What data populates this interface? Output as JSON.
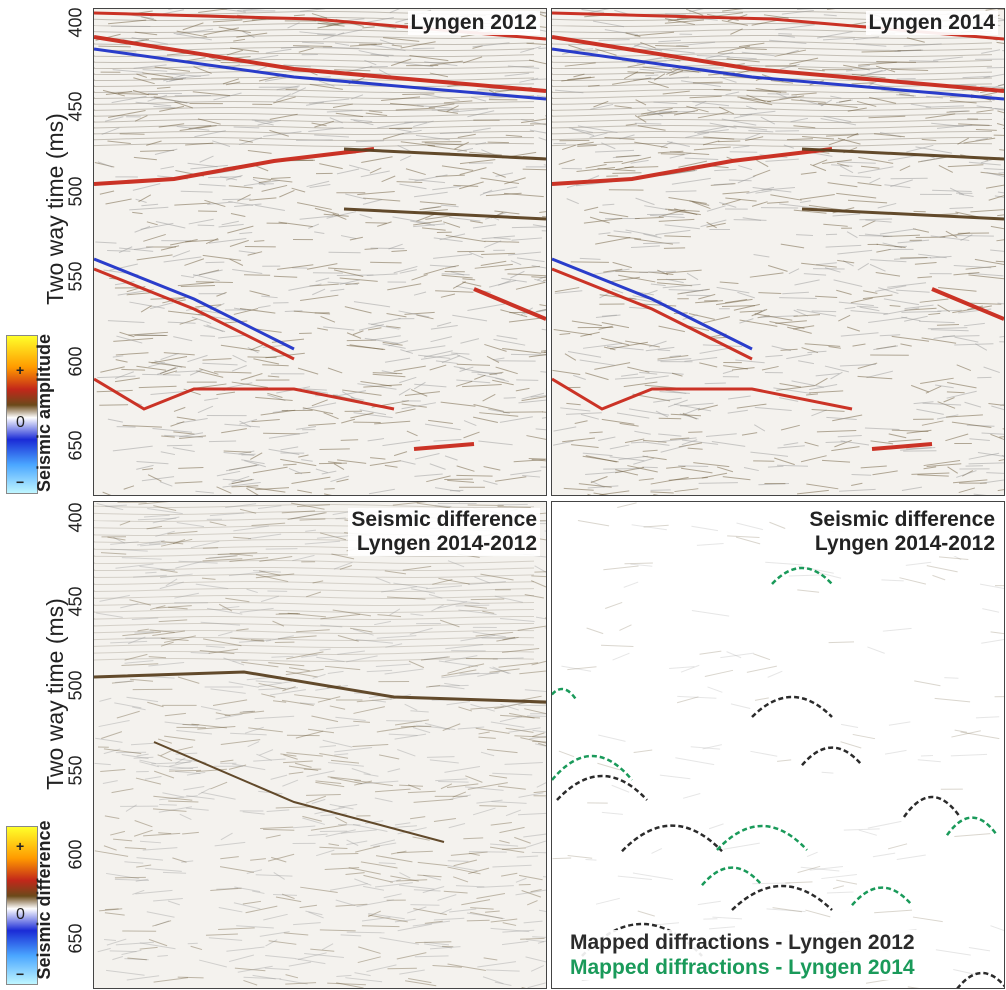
{
  "panels": {
    "top_left": {
      "title": "Lyngen 2012"
    },
    "top_right": {
      "title": "Lyngen 2014"
    },
    "bottom_left": {
      "title_line1": "Seismic difference",
      "title_line2": "Lyngen 2014-2012"
    },
    "bottom_right": {
      "title_line1": "Seismic difference",
      "title_line2": "Lyngen 2014-2012"
    }
  },
  "y_axis": {
    "label": "Two way time (ms)",
    "top_ticks": [
      "400",
      "450",
      "500",
      "550",
      "600",
      "650"
    ],
    "bottom_ticks": [
      "400",
      "450",
      "500",
      "550",
      "600",
      "650"
    ]
  },
  "colorbars": {
    "amplitude": {
      "label": "Seismic amplitude",
      "plus": "+",
      "zero": "0",
      "minus": "−"
    },
    "difference": {
      "label": "Seismic difference",
      "plus": "+",
      "zero": "0",
      "minus": "−"
    }
  },
  "legend": {
    "item_2012": "Mapped diffractions - Lyngen 2012",
    "item_2014": "Mapped diffractions - Lyngen 2014"
  },
  "colors": {
    "diffraction_2012": "#2b2b2b",
    "diffraction_2014": "#1a9a5a",
    "positive_reflector": "#c8281a",
    "negative_reflector": "#1f33c8"
  }
}
